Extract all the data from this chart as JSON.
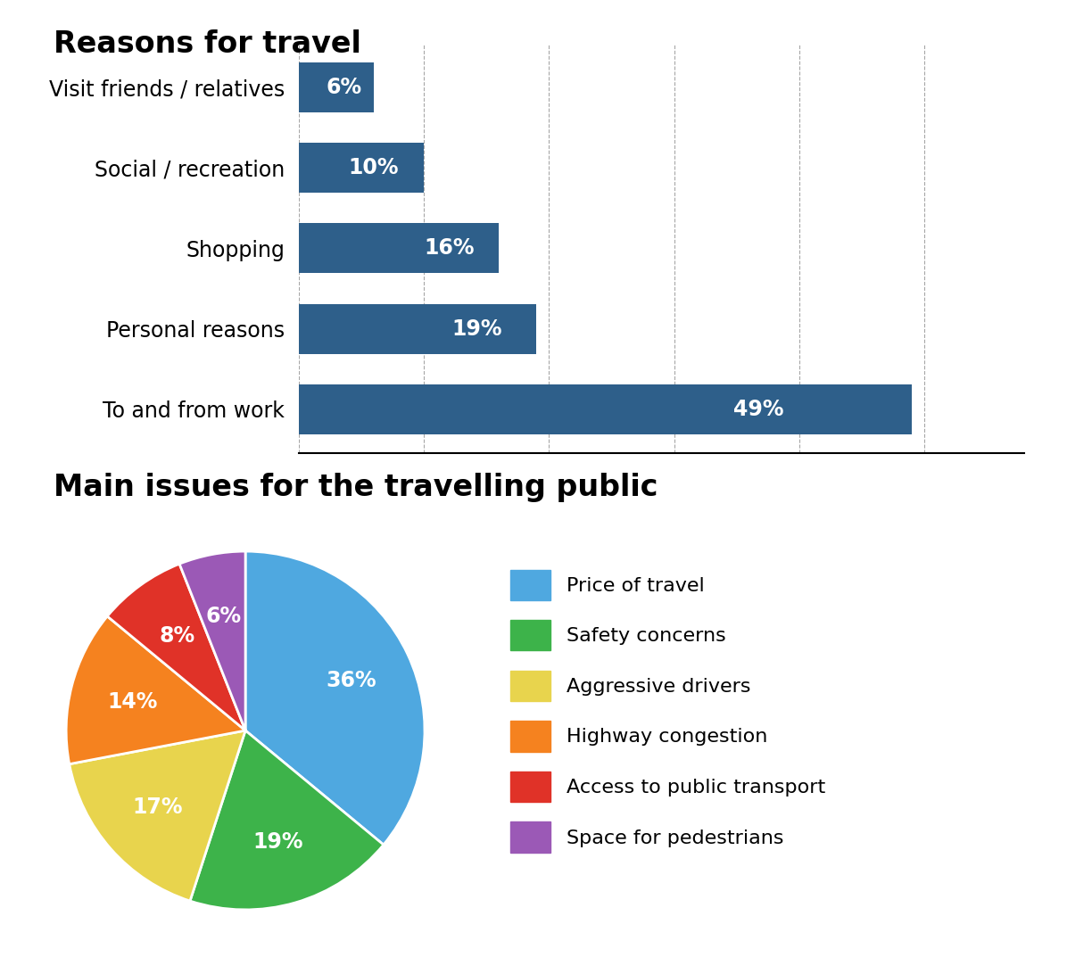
{
  "bar_title": "Reasons for travel",
  "bar_categories": [
    "To and from work",
    "Personal reasons",
    "Shopping",
    "Social / recreation",
    "Visit friends / relatives"
  ],
  "bar_values": [
    49,
    19,
    16,
    10,
    6
  ],
  "bar_color": "#2E5F8A",
  "bar_label_color": "white",
  "bar_fontsize": 17,
  "bar_title_fontsize": 24,
  "bar_ylabel_fontsize": 17,
  "pie_title": "Main issues for the travelling public",
  "pie_labels": [
    "Price of travel",
    "Safety concerns",
    "Aggressive drivers",
    "Highway congestion",
    "Access to public transport",
    "Space for pedestrians"
  ],
  "pie_values": [
    36,
    19,
    17,
    14,
    8,
    6
  ],
  "pie_colors": [
    "#4FA8E0",
    "#3DB34A",
    "#E8D44D",
    "#F5821F",
    "#E03228",
    "#9B59B6"
  ],
  "pie_label_color": "white",
  "pie_fontsize": 17,
  "pie_title_fontsize": 24,
  "background_color": "#FFFFFF"
}
